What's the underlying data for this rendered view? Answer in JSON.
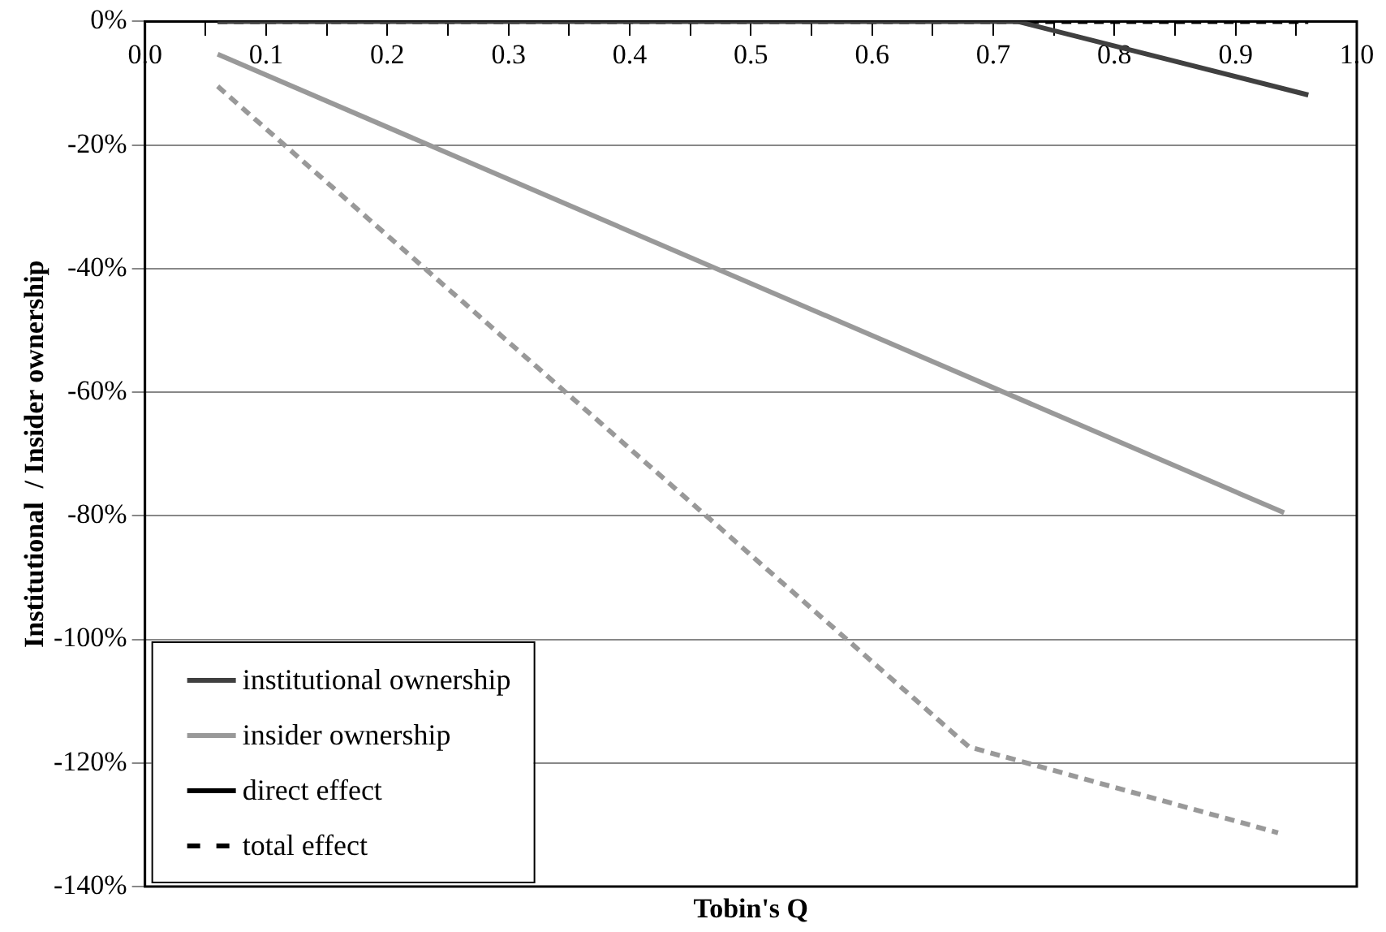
{
  "chart_data": {
    "type": "line",
    "xlabel": "Tobin's Q",
    "ylabel": "Institutional  / Insider ownership",
    "series": [
      {
        "name": "institutional ownership",
        "color": "#404040",
        "x": [
          0.06,
          0.72,
          0.96
        ],
        "values": [
          0,
          0,
          -11.9
        ]
      },
      {
        "name": "insider ownership",
        "color": "#999999",
        "x": [
          0.06,
          0.94
        ],
        "values": [
          -5.3,
          -79.5
        ]
      },
      {
        "name": "direct effect",
        "color": "#000000"
      },
      {
        "name": "total effect",
        "color": "#000000",
        "line_style": "dashed",
        "x": [
          0.06,
          0.96
        ],
        "values": [
          0,
          0
        ]
      },
      {
        "color": "#999999",
        "line_style": "dashed",
        "x": [
          0.06,
          0.68,
          0.935
        ],
        "values": [
          -10.5,
          -117.4,
          -131.3
        ]
      }
    ],
    "xlim": [
      0,
      1
    ],
    "xticks": [
      {
        "value": 0,
        "label": "0.0"
      },
      {
        "value": 0.05,
        "label": null
      },
      0.1,
      {
        "value": 0.15,
        "label": null
      },
      0.2,
      {
        "value": 0.25,
        "label": null
      },
      0.3,
      {
        "value": 0.35,
        "label": null
      },
      0.4,
      {
        "value": 0.45,
        "label": null
      },
      0.5,
      {
        "value": 0.55,
        "label": null
      },
      0.6,
      {
        "value": 0.65,
        "label": null
      },
      0.7,
      {
        "value": 0.75,
        "label": null
      },
      0.8,
      {
        "value": 0.85,
        "label": null
      },
      0.9,
      {
        "value": 0.95,
        "label": null
      },
      {
        "value": 1,
        "label": "1.0"
      }
    ],
    "ylim": [
      -140,
      0
    ],
    "yticks": [
      {
        "value": 0,
        "label": "0%"
      },
      {
        "value": -20,
        "label": "-20%"
      },
      {
        "value": -40,
        "label": "-40%"
      },
      {
        "value": -60,
        "label": "-60%"
      },
      {
        "value": -80,
        "label": "-80%"
      },
      {
        "value": -100,
        "label": "-100%"
      },
      {
        "value": -120,
        "label": "-120%"
      },
      {
        "value": -140,
        "label": "-140%"
      }
    ],
    "grid": "y",
    "legend": "bottom left",
    "line_style": "solid",
    "marker": "none"
  }
}
